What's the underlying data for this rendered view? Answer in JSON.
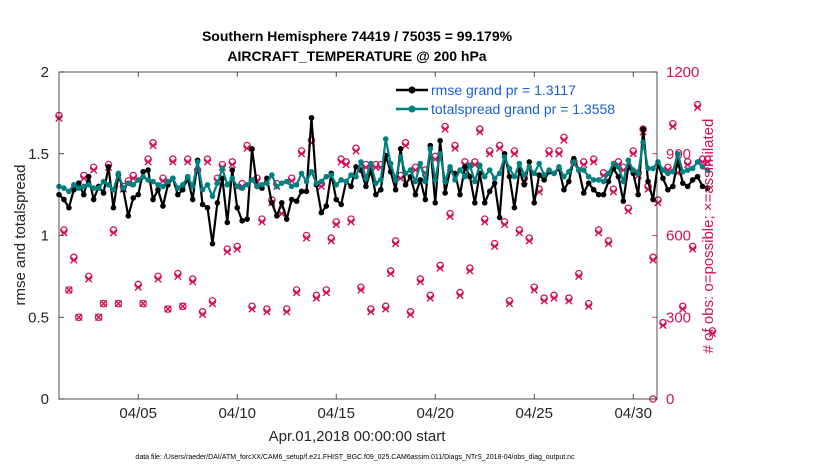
{
  "chart_data": {
    "type": "line",
    "title_line1": "Southern Hemisphere 74419 / 75035 = 99.179%",
    "title_line2": "AIRCRAFT_TEMPERATURE @ 200 hPa",
    "xlabel": "Apr.01,2018 00:00:00 start",
    "ylabel_left": "rmse and totalspread",
    "ylabel_right": "# of obs: o=possible; ×=assimilated",
    "footnote": "data file: /Users/raeder/DAI/ATM_forcXX/CAM6_setup/f.e21.FHIST_BGC.f09_025.CAM6assim.011/Diags_NTrS_2018-04/obs_diag_output.nc",
    "xlim": [
      1,
      31.2
    ],
    "ylim_left": [
      0,
      2
    ],
    "ylim_right": [
      0,
      1200
    ],
    "x_ticks": [
      5,
      10,
      15,
      20,
      25,
      30
    ],
    "x_tick_labels": [
      "04/05",
      "04/10",
      "04/15",
      "04/20",
      "04/25",
      "04/30"
    ],
    "y_left_ticks": [
      0,
      0.5,
      1,
      1.5,
      2
    ],
    "y_left_tick_labels": [
      "0",
      "0.5",
      "1",
      "1.5",
      "2"
    ],
    "y_right_ticks": [
      0,
      300,
      600,
      900,
      1200
    ],
    "y_right_tick_labels": [
      "0",
      "300",
      "600",
      "900",
      "1200"
    ],
    "legend": [
      "rmse grand pr = 1.3117",
      "totalspread grand pr = 1.3558"
    ],
    "colors": {
      "rmse": "#000000",
      "spread": "#008080",
      "obs": "#d0105a"
    },
    "x_start": 1.0,
    "x_step": 0.25,
    "series": [
      {
        "name": "rmse",
        "values": [
          1.25,
          1.22,
          1.17,
          1.28,
          1.32,
          1.25,
          1.36,
          1.22,
          1.3,
          1.26,
          1.42,
          1.17,
          1.37,
          1.28,
          1.12,
          1.23,
          1.25,
          1.39,
          1.4,
          1.22,
          1.28,
          1.18,
          1.31,
          1.35,
          1.25,
          1.28,
          1.35,
          1.22,
          1.46,
          1.19,
          1.17,
          0.95,
          1.2,
          1.35,
          1.08,
          1.4,
          1.17,
          1.09,
          1.1,
          1.53,
          1.3,
          1.29,
          1.35,
          1.2,
          1.12,
          1.2,
          1.1,
          1.22,
          1.21,
          1.27,
          1.27,
          1.72,
          1.31,
          1.14,
          1.18,
          1.38,
          1.22,
          1.19,
          1.33,
          1.3,
          1.42,
          1.4,
          1.3,
          1.4,
          1.25,
          1.28,
          1.49,
          1.39,
          1.28,
          1.53,
          1.31,
          1.36,
          1.25,
          1.34,
          1.22,
          1.55,
          1.2,
          1.58,
          1.26,
          1.4,
          1.38,
          1.25,
          1.42,
          1.36,
          1.2,
          1.38,
          1.2,
          1.27,
          1.32,
          1.11,
          1.5,
          1.36,
          1.17,
          1.4,
          1.31,
          1.45,
          1.2,
          1.37,
          1.34,
          1.39,
          1.38,
          1.41,
          1.28,
          1.33,
          1.47,
          1.4,
          1.26,
          1.32,
          1.28,
          1.25,
          1.25,
          1.33,
          1.41,
          1.36,
          1.21,
          1.42,
          1.38,
          1.25,
          1.65,
          1.33,
          1.22,
          1.44,
          1.35,
          1.28,
          1.3,
          1.46,
          1.32,
          1.3,
          1.34,
          1.36,
          1.3,
          1.29
        ]
      },
      {
        "name": "totalspread",
        "values": [
          1.3,
          1.29,
          1.27,
          1.31,
          1.29,
          1.3,
          1.31,
          1.29,
          1.29,
          1.33,
          1.31,
          1.28,
          1.38,
          1.29,
          1.32,
          1.31,
          1.34,
          1.36,
          1.34,
          1.33,
          1.31,
          1.3,
          1.33,
          1.35,
          1.29,
          1.31,
          1.36,
          1.3,
          1.45,
          1.28,
          1.31,
          1.24,
          1.32,
          1.41,
          1.31,
          1.35,
          1.3,
          1.29,
          1.31,
          1.34,
          1.3,
          1.31,
          1.32,
          1.37,
          1.3,
          1.32,
          1.33,
          1.3,
          1.31,
          1.38,
          1.33,
          1.39,
          1.32,
          1.33,
          1.36,
          1.37,
          1.31,
          1.34,
          1.33,
          1.37,
          1.36,
          1.45,
          1.35,
          1.44,
          1.32,
          1.34,
          1.59,
          1.44,
          1.34,
          1.48,
          1.38,
          1.4,
          1.33,
          1.44,
          1.33,
          1.53,
          1.34,
          1.5,
          1.33,
          1.42,
          1.34,
          1.4,
          1.36,
          1.43,
          1.33,
          1.43,
          1.36,
          1.4,
          1.35,
          1.38,
          1.48,
          1.41,
          1.36,
          1.44,
          1.37,
          1.42,
          1.38,
          1.44,
          1.37,
          1.4,
          1.38,
          1.42,
          1.36,
          1.39,
          1.45,
          1.4,
          1.4,
          1.36,
          1.34,
          1.34,
          1.33,
          1.38,
          1.44,
          1.42,
          1.33,
          1.46,
          1.4,
          1.38,
          1.57,
          1.41,
          1.41,
          1.45,
          1.4,
          1.38,
          1.39,
          1.5,
          1.39,
          1.4,
          1.41,
          1.45,
          1.42,
          1.4
        ]
      },
      {
        "name": "obs_possible",
        "values": [
          1040,
          620,
          400,
          520,
          300,
          820,
          450,
          850,
          300,
          350,
          860,
          620,
          350,
          780,
          800,
          820,
          420,
          350,
          880,
          940,
          450,
          810,
          330,
          880,
          460,
          340,
          880,
          440,
          840,
          320,
          880,
          360,
          810,
          860,
          550,
          870,
          560,
          790,
          930,
          340,
          810,
          660,
          330,
          730,
          790,
          690,
          330,
          810,
          400,
          910,
          600,
          950,
          380,
          790,
          400,
          590,
          650,
          880,
          870,
          660,
          920,
          410,
          860,
          330,
          860,
          860,
          340,
          470,
          580,
          820,
          940,
          320,
          850,
          440,
          840,
          380,
          890,
          490,
          1000,
          680,
          930,
          390,
          870,
          480,
          870,
          990,
          660,
          910,
          570,
          930,
          650,
          360,
          910,
          620,
          810,
          590,
          410,
          770,
          370,
          910,
          380,
          910,
          960,
          370,
          870,
          460,
          870,
          350,
          880,
          620,
          830,
          580,
          770,
          870,
          850,
          700,
          910,
          830,
          990,
          780,
          520,
          730,
          280,
          850,
          1010,
          840,
          340,
          870,
          560,
          1080,
          880,
          880,
          250
        ]
      },
      {
        "name": "obs_assimilated",
        "values": [
          1030,
          610,
          400,
          510,
          300,
          810,
          440,
          840,
          300,
          350,
          850,
          610,
          350,
          770,
          790,
          810,
          410,
          350,
          870,
          930,
          440,
          800,
          330,
          870,
          450,
          340,
          870,
          430,
          830,
          310,
          870,
          350,
          800,
          850,
          540,
          860,
          550,
          780,
          920,
          330,
          800,
          650,
          320,
          720,
          780,
          680,
          320,
          800,
          390,
          900,
          590,
          940,
          370,
          780,
          390,
          580,
          640,
          870,
          860,
          650,
          910,
          400,
          850,
          320,
          850,
          850,
          330,
          460,
          570,
          810,
          930,
          310,
          840,
          430,
          830,
          370,
          880,
          480,
          990,
          670,
          920,
          380,
          860,
          470,
          860,
          980,
          650,
          900,
          560,
          920,
          640,
          350,
          900,
          610,
          800,
          580,
          400,
          760,
          360,
          900,
          370,
          900,
          950,
          360,
          860,
          450,
          860,
          340,
          870,
          610,
          820,
          570,
          760,
          860,
          840,
          690,
          900,
          820,
          980,
          770,
          510,
          720,
          270,
          840,
          1000,
          830,
          330,
          860,
          550,
          1070,
          870,
          870,
          240
        ]
      }
    ],
    "final_point": {
      "x": 31.0,
      "obs": 0
    }
  }
}
